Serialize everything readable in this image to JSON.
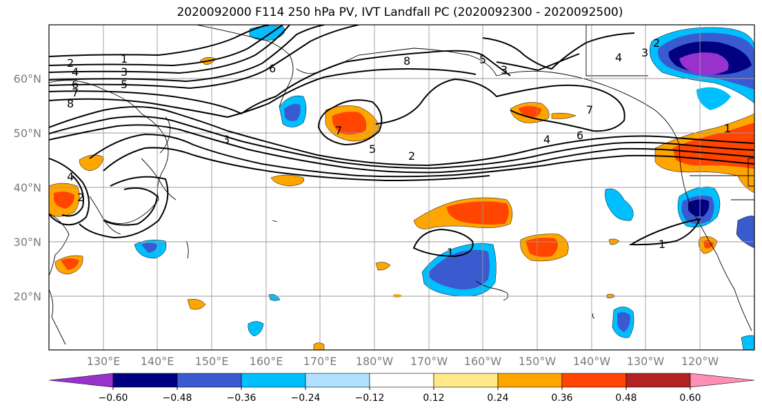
{
  "title": "2020092000 F114 250 hPa PV, IVT Landfall PC (2020092300 - 2020092500)",
  "lat_labels": [
    "60°N",
    "50°N",
    "40°N",
    "30°N",
    "20°N"
  ],
  "lon_labels": [
    "130°E",
    "140°E",
    "150°E",
    "160°E",
    "170°E",
    "180°W",
    "170°W",
    "160°W",
    "150°W",
    "140°W",
    "130°W",
    "120°W"
  ],
  "colorbar": {
    "colors": [
      "#9932cc",
      "#000080",
      "#3a5bd0",
      "#00bfff",
      "#b0e2ff",
      "#ffffff",
      "#ffe98a",
      "#ffa500",
      "#ff4500",
      "#b22222",
      "#ff8fb5"
    ],
    "ticks": [
      "−0.60",
      "−0.48",
      "−0.36",
      "−0.24",
      "−0.12",
      "0.12",
      "0.24",
      "0.36",
      "0.48",
      "0.60"
    ]
  },
  "pv_contour_labels": [
    "1",
    "2",
    "3",
    "4",
    "5",
    "6",
    "7",
    "8"
  ],
  "contour_label_texts": {
    "c1": "1",
    "c2": "2",
    "c3": "3",
    "c4": "4",
    "c5": "5",
    "c6": "6",
    "c7": "7",
    "c8": "8"
  }
}
